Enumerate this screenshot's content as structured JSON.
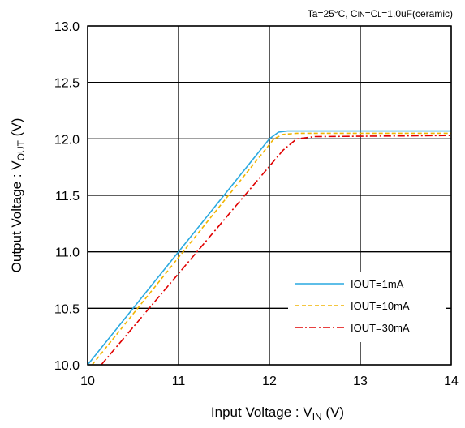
{
  "chart_data": {
    "type": "line",
    "conditions": {
      "ta": "Ta=25°C, C",
      "cin_sub": "IN",
      "eq": "=C",
      "cl_sub": "L",
      "rest": "=1.0uF(ceramic)"
    },
    "xlabel": {
      "main": "Input Voltage : V",
      "sub": "IN",
      "unit": "  (V)"
    },
    "ylabel": {
      "main": "Output Voltage : V",
      "sub": "OUT",
      "unit": "  (V)"
    },
    "xlim": [
      10,
      14
    ],
    "ylim": [
      10.0,
      13.0
    ],
    "xticks": [
      "10",
      "11",
      "12",
      "13",
      "14"
    ],
    "yticks": [
      "10.0",
      "10.5",
      "11.0",
      "11.5",
      "12.0",
      "12.5",
      "13.0"
    ],
    "grid": true,
    "legend_position": "bottom-right",
    "series": [
      {
        "name": "IOUT=1mA",
        "color": "#29a9e0",
        "dash": "solid",
        "x": [
          10.0,
          12.0,
          12.1,
          12.2,
          14.0
        ],
        "y": [
          10.0,
          12.0,
          12.06,
          12.07,
          12.07
        ]
      },
      {
        "name": "IOUT=10mA",
        "color": "#f0b400",
        "dash": "dash",
        "x": [
          10.05,
          12.05,
          12.15,
          12.3,
          14.0
        ],
        "y": [
          10.0,
          12.0,
          12.04,
          12.05,
          12.05
        ]
      },
      {
        "name": "IOUT=30mA",
        "color": "#e00000",
        "dash": "dashdot",
        "x": [
          10.15,
          12.15,
          12.3,
          12.5,
          14.0
        ],
        "y": [
          10.0,
          11.9,
          12.0,
          12.02,
          12.03
        ]
      }
    ]
  }
}
